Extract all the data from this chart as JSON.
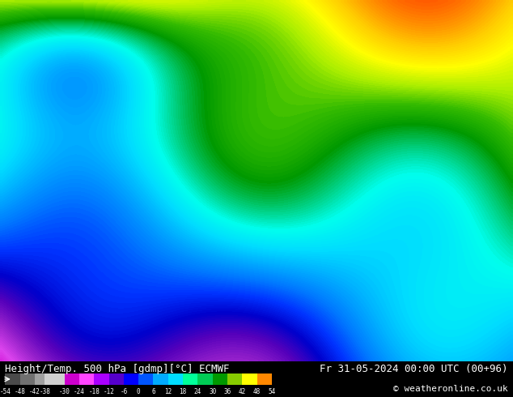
{
  "title_left": "Height/Temp. 500 hPa [gdmp][°C] ECMWF",
  "title_right": "Fr 31-05-2024 00:00 UTC (00+96)",
  "copyright": "© weatheronline.co.uk",
  "colorbar_values": [
    -54,
    -48,
    -42,
    -38,
    -30,
    -24,
    -18,
    -12,
    -6,
    0,
    6,
    12,
    18,
    24,
    30,
    36,
    42,
    48,
    54
  ],
  "colorbar_colors": [
    "#606060",
    "#808080",
    "#a0a0a0",
    "#c0c0c0",
    "#cc00cc",
    "#ff00ff",
    "#cc44ff",
    "#6600cc",
    "#0000cc",
    "#0044ff",
    "#0088ff",
    "#00ccff",
    "#00ffff",
    "#00cc88",
    "#00aa00",
    "#44cc00",
    "#ccff00",
    "#ffff00",
    "#ffcc00",
    "#ff8800",
    "#ff4400",
    "#cc0000",
    "#880000"
  ],
  "bg_color": "#000000",
  "map_bg": "#009900",
  "label_color_left": "#ffffff",
  "label_color_right": "#ffffff"
}
